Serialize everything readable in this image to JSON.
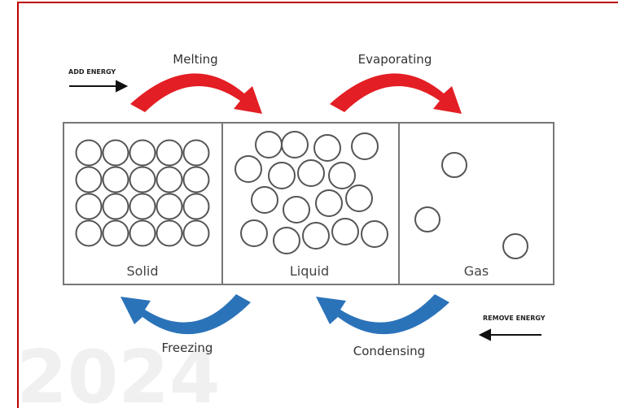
{
  "watermark": "2024",
  "energy": {
    "add": "ADD ENERGY",
    "remove": "REMOVE ENERGY"
  },
  "transitions": {
    "melting": "Melting",
    "evaporating": "Evaporating",
    "freezing": "Freezing",
    "condensing": "Condensing"
  },
  "states": [
    "Solid",
    "Liquid",
    "Gas"
  ]
}
